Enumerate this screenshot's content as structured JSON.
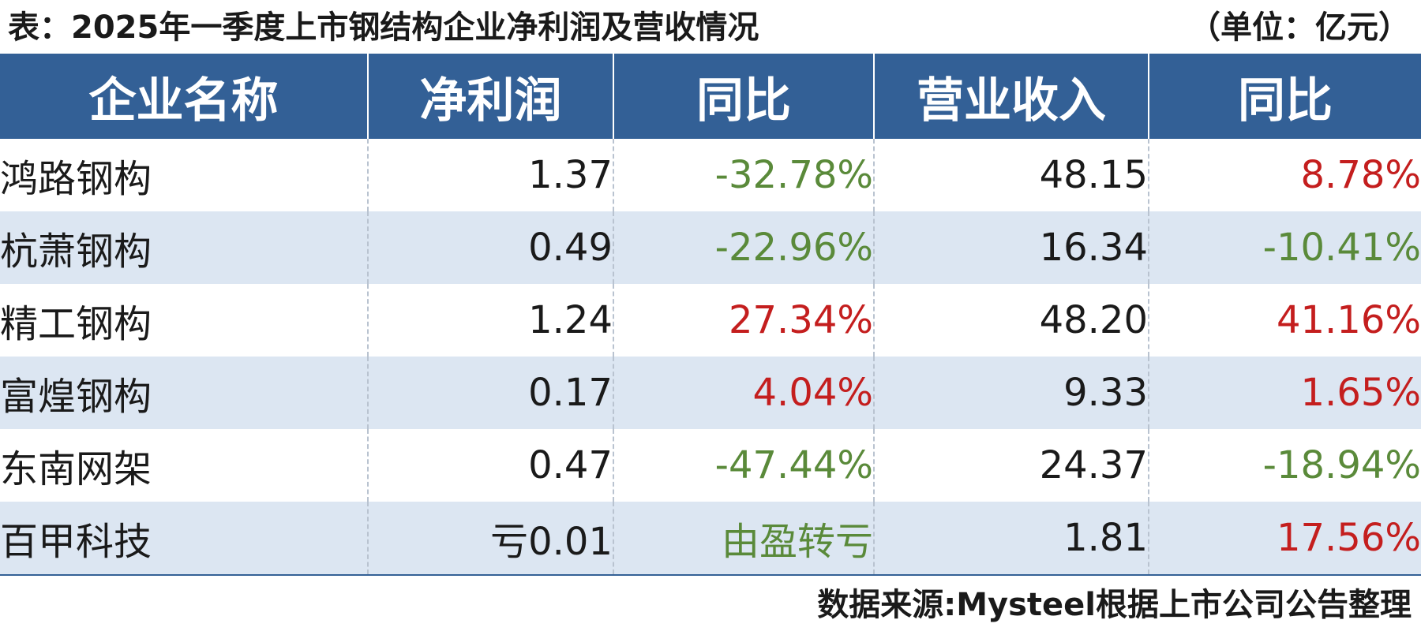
{
  "title": "表：2025年一季度上市钢结构企业净利润及营收情况",
  "unit": "（单位：亿元）",
  "colors": {
    "header_bg": "#336096",
    "alt_row_bg": "#dce6f2",
    "positive": "#c41e1e",
    "negative": "#5a8a3a"
  },
  "table": {
    "headers": [
      "企业名称",
      "净利润",
      "同比",
      "营业收入",
      "同比"
    ],
    "rows": [
      {
        "name": "鸿路钢构",
        "profit": "1.37",
        "profit_yoy": "-32.78%",
        "profit_yoy_tone": "neg",
        "revenue": "48.15",
        "revenue_yoy": "8.78%",
        "revenue_yoy_tone": "pos"
      },
      {
        "name": "杭萧钢构",
        "profit": "0.49",
        "profit_yoy": "-22.96%",
        "profit_yoy_tone": "neg",
        "revenue": "16.34",
        "revenue_yoy": "-10.41%",
        "revenue_yoy_tone": "neg"
      },
      {
        "name": "精工钢构",
        "profit": "1.24",
        "profit_yoy": "27.34%",
        "profit_yoy_tone": "pos",
        "revenue": "48.20",
        "revenue_yoy": "41.16%",
        "revenue_yoy_tone": "pos"
      },
      {
        "name": "富煌钢构",
        "profit": "0.17",
        "profit_yoy": "4.04%",
        "profit_yoy_tone": "pos",
        "revenue": "9.33",
        "revenue_yoy": "1.65%",
        "revenue_yoy_tone": "pos"
      },
      {
        "name": "东南网架",
        "profit": "0.47",
        "profit_yoy": "-47.44%",
        "profit_yoy_tone": "neg",
        "revenue": "24.37",
        "revenue_yoy": "-18.94%",
        "revenue_yoy_tone": "neg"
      },
      {
        "name": "百甲科技",
        "profit": "亏0.01",
        "profit_yoy": "由盈转亏",
        "profit_yoy_tone": "neg",
        "revenue": "1.81",
        "revenue_yoy": "17.56%",
        "revenue_yoy_tone": "pos"
      }
    ]
  },
  "source": "数据来源:Mysteel根据上市公司公告整理"
}
